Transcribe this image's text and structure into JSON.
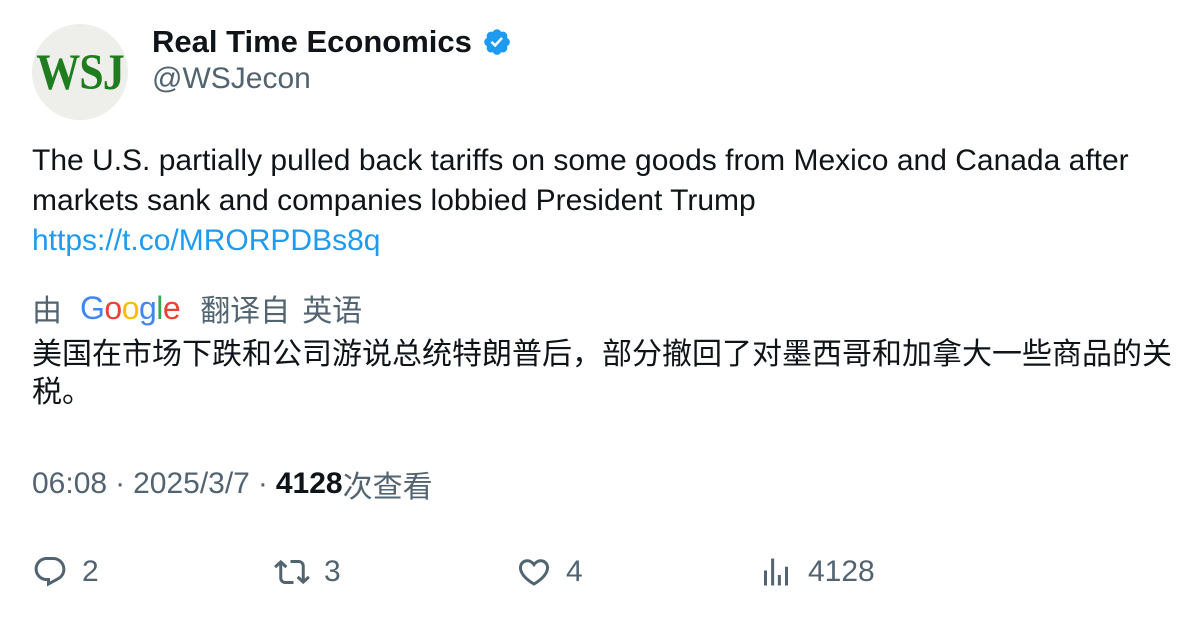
{
  "author": {
    "avatar_text": "WSJ",
    "display_name": "Real Time Economics",
    "handle": "@WSJecon",
    "verified_icon": "verified-badge-icon",
    "verified_color": "#1d9bf0"
  },
  "tweet": {
    "text": "The U.S. partially pulled back tariffs on some goods from Mexico and Canada after markets sank and companies lobbied President Trump",
    "link": "https://t.co/MRORPDBs8q"
  },
  "translation": {
    "prefix": "由",
    "logo_letters": [
      "G",
      "o",
      "o",
      "g",
      "l",
      "e"
    ],
    "translated_from": "翻译自",
    "language": "英语",
    "text": "美国在市场下跌和公司游说总统特朗普后，部分撤回了对墨西哥和加拿大一些商品的关税。"
  },
  "meta": {
    "time": "06:08",
    "separator": "·",
    "date": "2025/3/7",
    "views_count": "4128",
    "views_label": "次查看"
  },
  "actions": {
    "reply_count": "2",
    "retweet_count": "3",
    "like_count": "4",
    "views_count": "4128"
  }
}
